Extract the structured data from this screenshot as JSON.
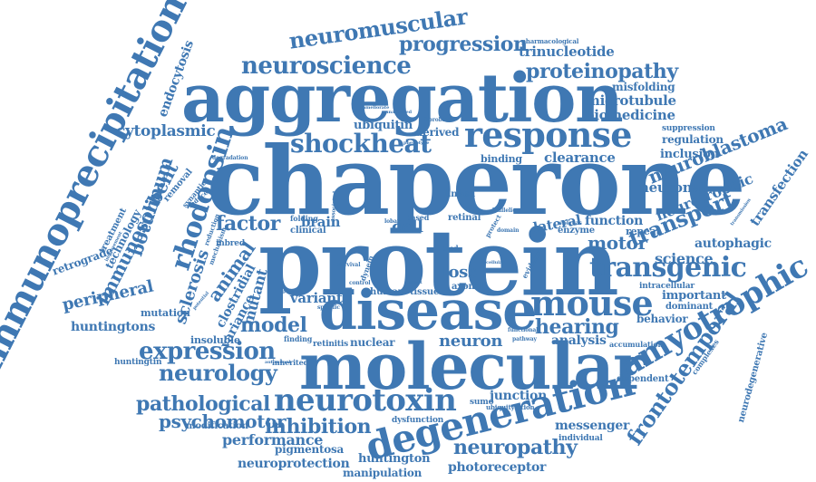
{
  "palette": {
    "word_color": "#3f78b3",
    "background": "#ffffff"
  },
  "words": [
    {
      "text": "chaperone",
      "size": "huge"
    },
    {
      "text": "protein",
      "size": "huge"
    },
    {
      "text": "aggregation",
      "size": "xl"
    },
    {
      "text": "molecular",
      "size": "xl"
    },
    {
      "text": "disease",
      "size": "xl"
    },
    {
      "text": "immunoprecipitation",
      "size": "l"
    },
    {
      "text": "degeneration",
      "size": "l"
    },
    {
      "text": "response",
      "size": "l"
    },
    {
      "text": "amyotrophic",
      "size": "l"
    },
    {
      "text": "mouse",
      "size": "l"
    },
    {
      "text": "neurotoxin",
      "size": "l"
    },
    {
      "text": "transgenic",
      "size": "m"
    },
    {
      "text": "shockheat",
      "size": "m"
    },
    {
      "text": "neuroscience",
      "size": "m"
    },
    {
      "text": "rhodopsin",
      "size": "m"
    },
    {
      "text": "frontotemporal",
      "size": "m"
    },
    {
      "text": "expression",
      "size": "m"
    },
    {
      "text": "neurology",
      "size": "m"
    },
    {
      "text": "neuromuscular",
      "size": "m"
    },
    {
      "text": "progression",
      "size": "m"
    },
    {
      "text": "proteinopathy",
      "size": "m"
    },
    {
      "text": "transport",
      "size": "m"
    },
    {
      "text": "neuroblastoma",
      "size": "m"
    },
    {
      "text": "pathological",
      "size": "m"
    },
    {
      "text": "neuropathy",
      "size": "m"
    },
    {
      "text": "inhibition",
      "size": "m"
    },
    {
      "text": "psychomotor",
      "size": "m"
    },
    {
      "text": "immunosorbent",
      "size": "m"
    },
    {
      "text": "hearing",
      "size": "m"
    },
    {
      "text": "model",
      "size": "m"
    },
    {
      "text": "factor",
      "size": "m"
    },
    {
      "text": "animal",
      "size": "m"
    },
    {
      "text": "motor",
      "size": "m"
    },
    {
      "text": "sclerosis",
      "size": "m"
    },
    {
      "text": "peripheral",
      "size": "m"
    },
    {
      "text": "botulinum",
      "size": "m"
    },
    {
      "text": "cytoplasmic",
      "size": "s"
    },
    {
      "text": "neuron",
      "size": "s"
    },
    {
      "text": "performance",
      "size": "s"
    },
    {
      "text": "endocytosis",
      "size": "s"
    },
    {
      "text": "trinucleotide",
      "size": "s"
    },
    {
      "text": "microtubule",
      "size": "s"
    },
    {
      "text": "biomedicine",
      "size": "s"
    },
    {
      "text": "misfolding",
      "size": "s"
    },
    {
      "text": "clearance",
      "size": "s"
    },
    {
      "text": "inclusion",
      "size": "s"
    },
    {
      "text": "neurotrophic",
      "size": "s"
    },
    {
      "text": "neuronal",
      "size": "s"
    },
    {
      "text": "transfection",
      "size": "s"
    },
    {
      "text": "science",
      "size": "s"
    },
    {
      "text": "autophagic",
      "size": "s"
    },
    {
      "text": "lateral",
      "size": "s"
    },
    {
      "text": "function",
      "size": "s"
    },
    {
      "text": "loss",
      "size": "s"
    },
    {
      "text": "cell",
      "size": "s"
    },
    {
      "text": "brain",
      "size": "s"
    },
    {
      "text": "variance",
      "size": "s"
    },
    {
      "text": "mutant",
      "size": "s"
    },
    {
      "text": "variant",
      "size": "s"
    },
    {
      "text": "clostridial",
      "size": "s"
    },
    {
      "text": "huntingtons",
      "size": "s"
    },
    {
      "text": "analysis",
      "size": "s"
    },
    {
      "text": "behavior",
      "size": "s"
    },
    {
      "text": "important",
      "size": "s"
    },
    {
      "text": "messenger",
      "size": "s"
    },
    {
      "text": "junction",
      "size": "s"
    },
    {
      "text": "photoreceptor",
      "size": "s"
    },
    {
      "text": "huntington",
      "size": "s"
    },
    {
      "text": "neuroprotection",
      "size": "s"
    },
    {
      "text": "pigmentosa",
      "size": "s"
    },
    {
      "text": "manipulation",
      "size": "s"
    },
    {
      "text": "nuclear",
      "size": "s"
    },
    {
      "text": "ubiquitin",
      "size": "s"
    },
    {
      "text": "derived",
      "size": "s"
    },
    {
      "text": "binding",
      "size": "xs"
    },
    {
      "text": "regulation",
      "size": "xs"
    },
    {
      "text": "suppression",
      "size": "xs"
    },
    {
      "text": "retrograde",
      "size": "xs"
    },
    {
      "text": "technology",
      "size": "xs"
    },
    {
      "text": "treatment",
      "size": "xs"
    },
    {
      "text": "removal",
      "size": "xs"
    },
    {
      "text": "insoluble",
      "size": "xs"
    },
    {
      "text": "mutation",
      "size": "xs"
    },
    {
      "text": "modification",
      "size": "xs"
    },
    {
      "text": "dysfunction",
      "size": "xs"
    },
    {
      "text": "individual",
      "size": "xs"
    },
    {
      "text": "dependent",
      "size": "xs"
    },
    {
      "text": "repeat",
      "size": "xs"
    },
    {
      "text": "enzyme",
      "size": "xs"
    },
    {
      "text": "dominant",
      "size": "xs"
    },
    {
      "text": "accumulation",
      "size": "xs"
    },
    {
      "text": "neurodegenerative",
      "size": "xs"
    },
    {
      "text": "complexes",
      "size": "xs"
    },
    {
      "text": "intracellular",
      "size": "xs"
    },
    {
      "text": "axonal",
      "size": "xs"
    },
    {
      "text": "tissue",
      "size": "xs"
    },
    {
      "text": "human",
      "size": "xs"
    },
    {
      "text": "retinal",
      "size": "xs"
    },
    {
      "text": "linked",
      "size": "xs"
    },
    {
      "text": "clinical",
      "size": "xs"
    },
    {
      "text": "folding",
      "size": "xs"
    },
    {
      "text": "inherited",
      "size": "xs"
    },
    {
      "text": "huntingtin",
      "size": "xs"
    },
    {
      "text": "retinitis",
      "size": "xs"
    },
    {
      "text": "finding",
      "size": "xs"
    },
    {
      "text": "sumo",
      "size": "xs"
    },
    {
      "text": "ubiquitylation",
      "size": "xs"
    },
    {
      "text": "functional",
      "size": "xs"
    },
    {
      "text": "pathway",
      "size": "xs"
    },
    {
      "text": "inbred",
      "size": "xs"
    },
    {
      "text": "reduction",
      "size": "xs"
    },
    {
      "text": "mechanism",
      "size": "xs"
    },
    {
      "text": "synaptic",
      "size": "xs"
    },
    {
      "text": "inducer",
      "size": "xs"
    },
    {
      "text": "degradation",
      "size": "xs"
    },
    {
      "text": "pharmacological",
      "size": "xs"
    },
    {
      "text": "fibroblast",
      "size": "xs"
    },
    {
      "text": "phenotype",
      "size": "xs"
    },
    {
      "text": "based",
      "size": "xs"
    },
    {
      "text": "lobar",
      "size": "xs"
    },
    {
      "text": "domain",
      "size": "xs"
    },
    {
      "text": "bicd",
      "size": "xs"
    },
    {
      "text": "protect",
      "size": "xs"
    },
    {
      "text": "evidence",
      "size": "xs"
    },
    {
      "text": "specific",
      "size": "xs"
    },
    {
      "text": "present",
      "size": "xs"
    },
    {
      "text": "control",
      "size": "xs"
    },
    {
      "text": "effect",
      "size": "xs"
    },
    {
      "text": "survival",
      "size": "xs"
    },
    {
      "text": "dynein",
      "size": "xs"
    },
    {
      "text": "ameliorate",
      "size": "xs"
    },
    {
      "text": "unaffected",
      "size": "xs"
    },
    {
      "text": "biallelic",
      "size": "xs"
    },
    {
      "text": "whereas",
      "size": "xs"
    },
    {
      "text": "autosomal",
      "size": "xs"
    },
    {
      "text": "improvement",
      "size": "xs"
    },
    {
      "text": "associated",
      "size": "xs"
    },
    {
      "text": "cellular",
      "size": "xs"
    },
    {
      "text": "potential",
      "size": "xs"
    },
    {
      "text": "transmission",
      "size": "xs"
    }
  ]
}
